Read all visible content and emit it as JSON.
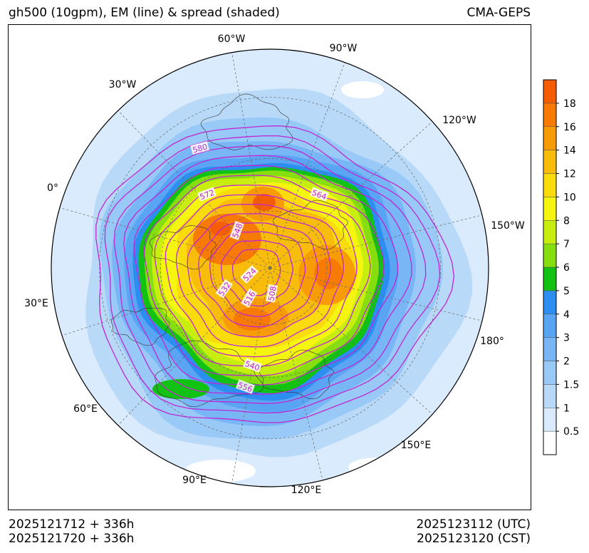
{
  "header": {
    "title": "gh500 (10gpm), EM (line) & spread (shaded)",
    "model": "CMA-GEPS"
  },
  "footer": {
    "init_time": "2025121712 + 336h",
    "init_time_cst": "2025121720 + 336h",
    "valid_utc": "2025123112 (UTC)",
    "valid_cst": "2025123120 (CST)"
  },
  "map": {
    "projection": "north-polar-stereographic",
    "longitude_labels": [
      "60°W",
      "90°W",
      "120°W",
      "150°W",
      "180°",
      "150°E",
      "120°E",
      "90°E",
      "60°E",
      "30°E",
      "0°",
      "30°W"
    ],
    "contour_labels": [
      "580",
      "572",
      "564",
      "556",
      "548",
      "540",
      "532",
      "524",
      "516",
      "508"
    ],
    "spread_colors": [
      "#ffffff",
      "#d9ebfc",
      "#b8d9f8",
      "#99c9f7",
      "#78b6f5",
      "#5aa5f3",
      "#2b8ef0",
      "#12c212",
      "#86de0e",
      "#c8ee0f",
      "#f5f50f",
      "#fadc0c",
      "#f8bd0a",
      "#f79c06",
      "#f67a04",
      "#f55d02"
    ],
    "contour_color": "#c026d3"
  },
  "colorbar": {
    "labels": [
      "0.5",
      "1",
      "1.5",
      "2",
      "3",
      "4",
      "5",
      "6",
      "7",
      "8",
      "10",
      "12",
      "14",
      "16",
      "18"
    ]
  }
}
